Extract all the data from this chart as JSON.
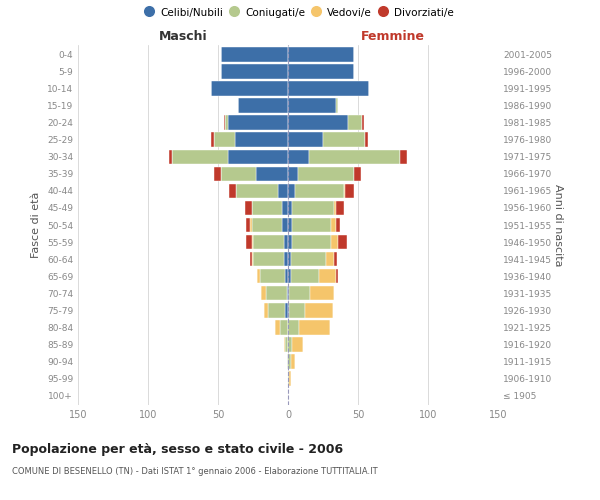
{
  "age_groups": [
    "100+",
    "95-99",
    "90-94",
    "85-89",
    "80-84",
    "75-79",
    "70-74",
    "65-69",
    "60-64",
    "55-59",
    "50-54",
    "45-49",
    "40-44",
    "35-39",
    "30-34",
    "25-29",
    "20-24",
    "15-19",
    "10-14",
    "5-9",
    "0-4"
  ],
  "birth_years": [
    "≤ 1905",
    "1906-1910",
    "1911-1915",
    "1916-1920",
    "1921-1925",
    "1926-1930",
    "1931-1935",
    "1936-1940",
    "1941-1945",
    "1946-1950",
    "1951-1955",
    "1956-1960",
    "1961-1965",
    "1966-1970",
    "1971-1975",
    "1976-1980",
    "1981-1985",
    "1986-1990",
    "1991-1995",
    "1996-2000",
    "2001-2005"
  ],
  "male": {
    "celibi": [
      0,
      0,
      0,
      0,
      0,
      2,
      1,
      2,
      3,
      3,
      4,
      4,
      7,
      23,
      43,
      38,
      43,
      36,
      55,
      48,
      48
    ],
    "coniugati": [
      0,
      0,
      1,
      2,
      6,
      12,
      15,
      18,
      22,
      22,
      22,
      22,
      30,
      25,
      40,
      15,
      2,
      0,
      0,
      0,
      0
    ],
    "vedovi": [
      0,
      0,
      0,
      1,
      3,
      3,
      3,
      2,
      1,
      1,
      1,
      0,
      0,
      0,
      0,
      0,
      0,
      0,
      0,
      0,
      0
    ],
    "divorziati": [
      0,
      0,
      0,
      0,
      0,
      0,
      0,
      0,
      1,
      4,
      3,
      5,
      5,
      5,
      2,
      2,
      1,
      0,
      0,
      0,
      0
    ]
  },
  "female": {
    "nubili": [
      0,
      0,
      0,
      0,
      0,
      1,
      1,
      2,
      2,
      3,
      3,
      3,
      5,
      7,
      15,
      25,
      43,
      34,
      58,
      47,
      47
    ],
    "coniugate": [
      0,
      1,
      2,
      3,
      8,
      11,
      15,
      20,
      25,
      28,
      28,
      30,
      35,
      40,
      65,
      30,
      10,
      2,
      0,
      0,
      0
    ],
    "vedove": [
      0,
      1,
      3,
      8,
      22,
      20,
      17,
      12,
      6,
      5,
      3,
      1,
      1,
      0,
      0,
      0,
      0,
      0,
      0,
      0,
      0
    ],
    "divorziate": [
      0,
      0,
      0,
      0,
      0,
      0,
      0,
      2,
      2,
      6,
      3,
      6,
      6,
      5,
      5,
      2,
      1,
      0,
      0,
      0,
      0
    ]
  },
  "colors": {
    "celibi": "#3d6fa8",
    "coniugati": "#b5c98e",
    "vedovi": "#f5c56b",
    "divorziati": "#c0392b"
  },
  "legend_labels": [
    "Celibi/Nubili",
    "Coniugati/e",
    "Vedovi/e",
    "Divorziati/e"
  ],
  "title": "Popolazione per età, sesso e stato civile - 2006",
  "subtitle": "COMUNE DI BESENELLO (TN) - Dati ISTAT 1° gennaio 2006 - Elaborazione TUTTITALIA.IT",
  "xlabel_left": "Maschi",
  "xlabel_right": "Femmine",
  "ylabel_left": "Fasce di età",
  "ylabel_right": "Anni di nascita",
  "xlim": 150,
  "bg_color": "#ffffff",
  "grid_color": "#cccccc",
  "axis_label_color": "#555555",
  "tick_color": "#888888"
}
